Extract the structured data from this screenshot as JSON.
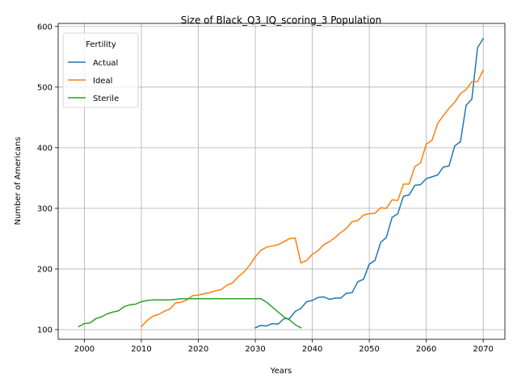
{
  "chart_data": {
    "type": "line",
    "title": "Size of Black_Q3_IQ_scoring_3 Population",
    "xlabel": "Years",
    "ylabel": "Number of Americans",
    "xlim": [
      1995.4,
      2073.8
    ],
    "ylim": [
      84,
      605
    ],
    "xticks": [
      2000,
      2010,
      2020,
      2030,
      2040,
      2050,
      2060,
      2070
    ],
    "yticks": [
      100,
      200,
      300,
      400,
      500,
      600
    ],
    "grid": true,
    "legend": {
      "title": "Fertility",
      "placement": "top-left"
    },
    "series": [
      {
        "name": "Actual",
        "color": "#1f77b4",
        "x": [
          2030,
          2031,
          2032,
          2033,
          2034,
          2035,
          2036,
          2037,
          2038,
          2039,
          2040,
          2041,
          2042,
          2043,
          2044,
          2045,
          2046,
          2047,
          2048,
          2049,
          2050,
          2051,
          2052,
          2053,
          2054,
          2055,
          2056,
          2057,
          2058,
          2059,
          2060,
          2061,
          2062,
          2063,
          2064,
          2065,
          2066,
          2067,
          2068,
          2069,
          2070
        ],
        "values": [
          103,
          107,
          106,
          110,
          109,
          118,
          118,
          130,
          135,
          146,
          148,
          153,
          154,
          150,
          152,
          152,
          160,
          161,
          179,
          183,
          208,
          214,
          244,
          252,
          285,
          291,
          320,
          322,
          338,
          339,
          349,
          352,
          355,
          368,
          370,
          403,
          410,
          470,
          480,
          565,
          580
        ]
      },
      {
        "name": "Ideal",
        "color": "#ff7f0e",
        "x": [
          2010,
          2011,
          2012,
          2013,
          2014,
          2015,
          2016,
          2017,
          2018,
          2019,
          2020,
          2021,
          2022,
          2023,
          2024,
          2025,
          2026,
          2027,
          2028,
          2029,
          2030,
          2031,
          2032,
          2033,
          2034,
          2035,
          2036,
          2037,
          2038,
          2039,
          2040,
          2041,
          2042,
          2043,
          2044,
          2045,
          2046,
          2047,
          2048,
          2049,
          2050,
          2051,
          2052,
          2053,
          2054,
          2055,
          2056,
          2057,
          2058,
          2059,
          2060,
          2061,
          2062,
          2063,
          2064,
          2065,
          2066,
          2067,
          2068,
          2069,
          2070
        ],
        "values": [
          105,
          115,
          122,
          125,
          130,
          134,
          144,
          145,
          149,
          156,
          157,
          159,
          161,
          164,
          166,
          173,
          177,
          187,
          195,
          206,
          220,
          231,
          236,
          238,
          240,
          245,
          250,
          251,
          210,
          214,
          224,
          230,
          240,
          245,
          252,
          260,
          267,
          278,
          280,
          289,
          291,
          292,
          301,
          300,
          314,
          313,
          340,
          340,
          369,
          375,
          406,
          412,
          440,
          453,
          465,
          475,
          489,
          496,
          509,
          509,
          528
        ]
      },
      {
        "name": "Sterile",
        "color": "#2ca02c",
        "x": [
          1999,
          2000,
          2001,
          2002,
          2003,
          2004,
          2005,
          2006,
          2007,
          2008,
          2009,
          2010,
          2011,
          2012,
          2013,
          2014,
          2015,
          2016,
          2017,
          2018,
          2019,
          2020,
          2021,
          2022,
          2023,
          2024,
          2025,
          2026,
          2027,
          2028,
          2029,
          2030,
          2031,
          2032,
          2033,
          2034,
          2035,
          2036,
          2037,
          2038
        ],
        "values": [
          105,
          110,
          111,
          118,
          121,
          126,
          129,
          131,
          138,
          141,
          142,
          146,
          148,
          149,
          149,
          149,
          149,
          150,
          151,
          151,
          151,
          151,
          151,
          151,
          151,
          151,
          151,
          151,
          151,
          151,
          151,
          151,
          151,
          145,
          137,
          129,
          121,
          116,
          108,
          103
        ]
      }
    ]
  }
}
